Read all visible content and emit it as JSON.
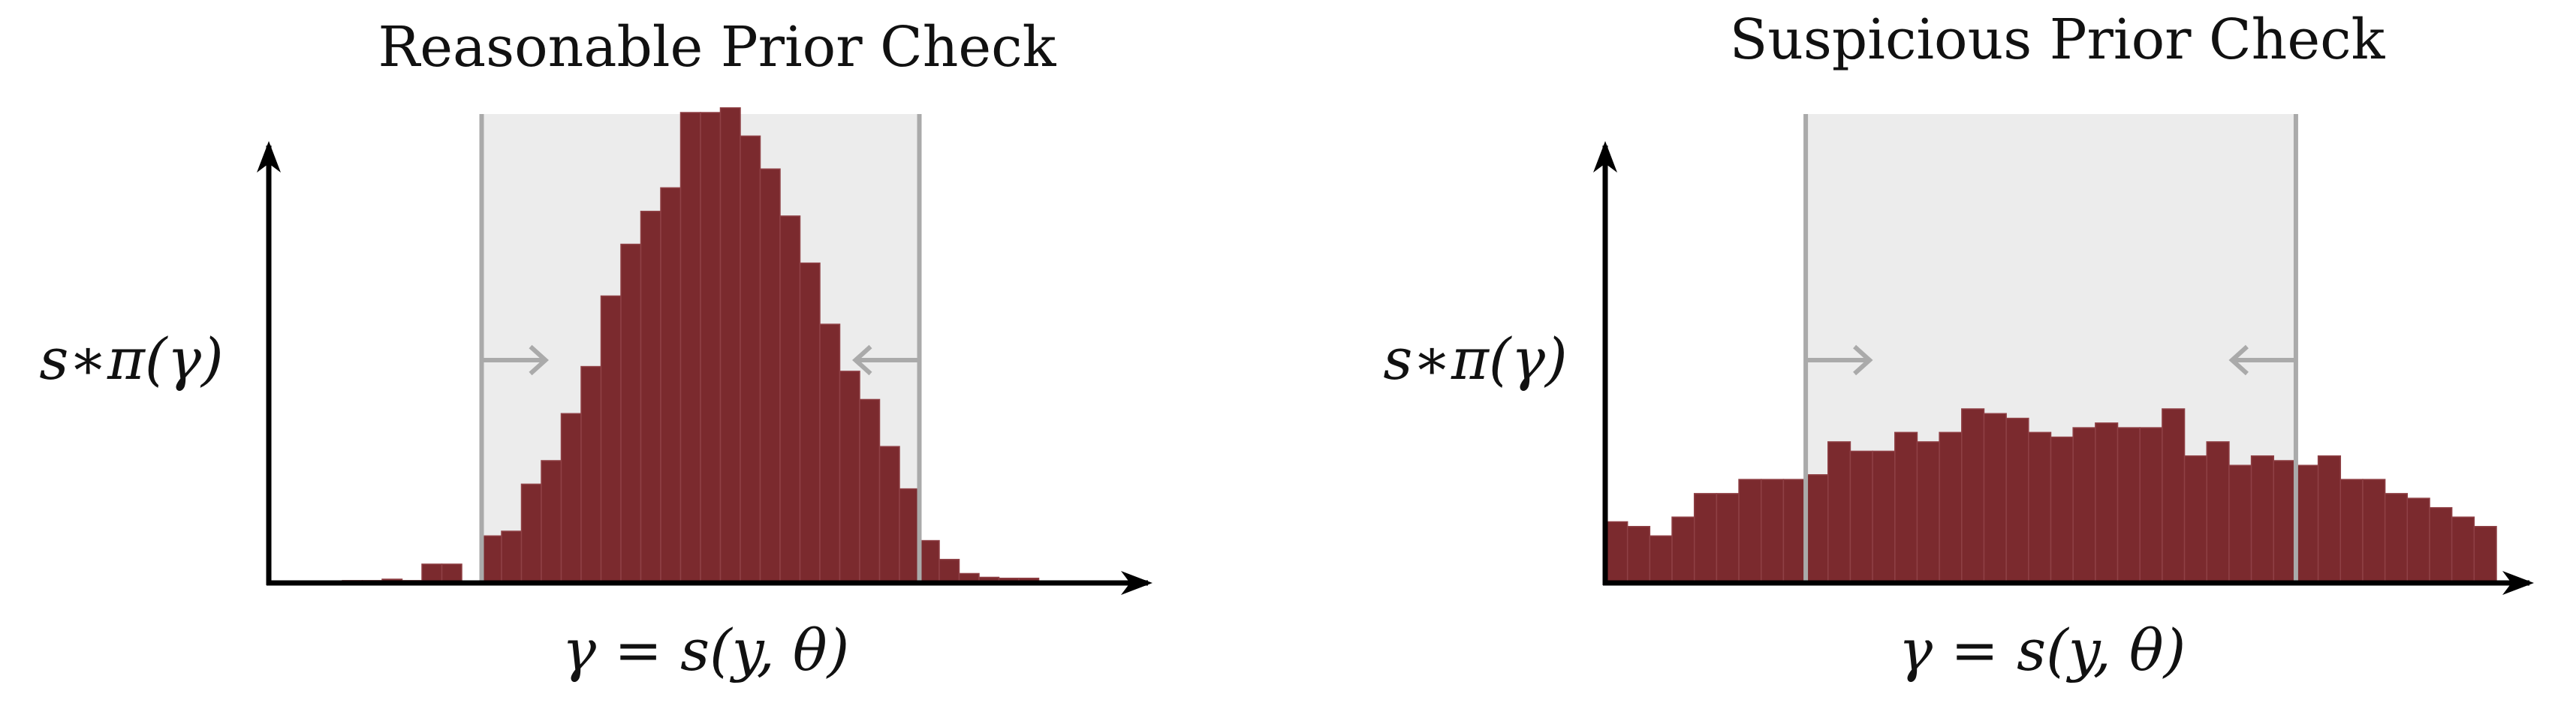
{
  "colors": {
    "bar": "#7b2a2e",
    "bar_edge": "#8f4045",
    "region": "#ececec",
    "region_border": "#aaaaaa",
    "axis": "#000000"
  },
  "chart_data": [
    {
      "type": "bar",
      "title": "Reasonable Prior Check",
      "ylabel": "s∗π(γ)",
      "xlabel": "γ = s(y, θ)",
      "xlim": [
        0,
        40
      ],
      "ylim": [
        0,
        1.0
      ],
      "shaded_interval": [
        9,
        31
      ],
      "arrows": [
        "right",
        "left"
      ],
      "bar_width": 1,
      "bins": [
        2,
        3,
        4,
        5,
        6,
        7,
        8,
        9,
        10,
        11,
        12,
        13,
        14,
        15,
        16,
        17,
        18,
        19,
        20,
        21,
        22,
        23,
        24,
        25,
        26,
        27,
        28,
        29,
        30,
        31,
        32,
        33,
        34,
        35,
        36
      ],
      "values": [
        0.005,
        0.005,
        0.008,
        0.005,
        0.04,
        0.04,
        0.0,
        0.1,
        0.11,
        0.21,
        0.26,
        0.36,
        0.46,
        0.61,
        0.72,
        0.79,
        0.84,
        1.0,
        1.0,
        1.01,
        0.95,
        0.88,
        0.78,
        0.68,
        0.55,
        0.45,
        0.39,
        0.29,
        0.2,
        0.09,
        0.05,
        0.02,
        0.012,
        0.01,
        0.01
      ]
    },
    {
      "type": "bar",
      "title": "Suspicious Prior Check",
      "ylabel": "s∗π(γ)",
      "xlabel": "γ = s(y, θ)",
      "xlim": [
        0,
        40
      ],
      "ylim": [
        0,
        1.0
      ],
      "shaded_interval": [
        9,
        31
      ],
      "arrows": [
        "right",
        "left"
      ],
      "bar_width": 1,
      "bins": [
        0,
        1,
        2,
        3,
        4,
        5,
        6,
        7,
        8,
        9,
        10,
        11,
        12,
        13,
        14,
        15,
        16,
        17,
        18,
        19,
        20,
        21,
        22,
        23,
        24,
        25,
        26,
        27,
        28,
        29,
        30,
        31,
        32,
        33,
        34,
        35,
        36,
        37,
        38,
        39
      ],
      "values": [
        0.13,
        0.12,
        0.1,
        0.14,
        0.19,
        0.19,
        0.22,
        0.22,
        0.22,
        0.23,
        0.3,
        0.28,
        0.28,
        0.32,
        0.3,
        0.32,
        0.37,
        0.36,
        0.35,
        0.32,
        0.31,
        0.33,
        0.34,
        0.33,
        0.33,
        0.37,
        0.27,
        0.3,
        0.25,
        0.27,
        0.26,
        0.25,
        0.27,
        0.22,
        0.22,
        0.19,
        0.18,
        0.16,
        0.14,
        0.12
      ]
    }
  ]
}
